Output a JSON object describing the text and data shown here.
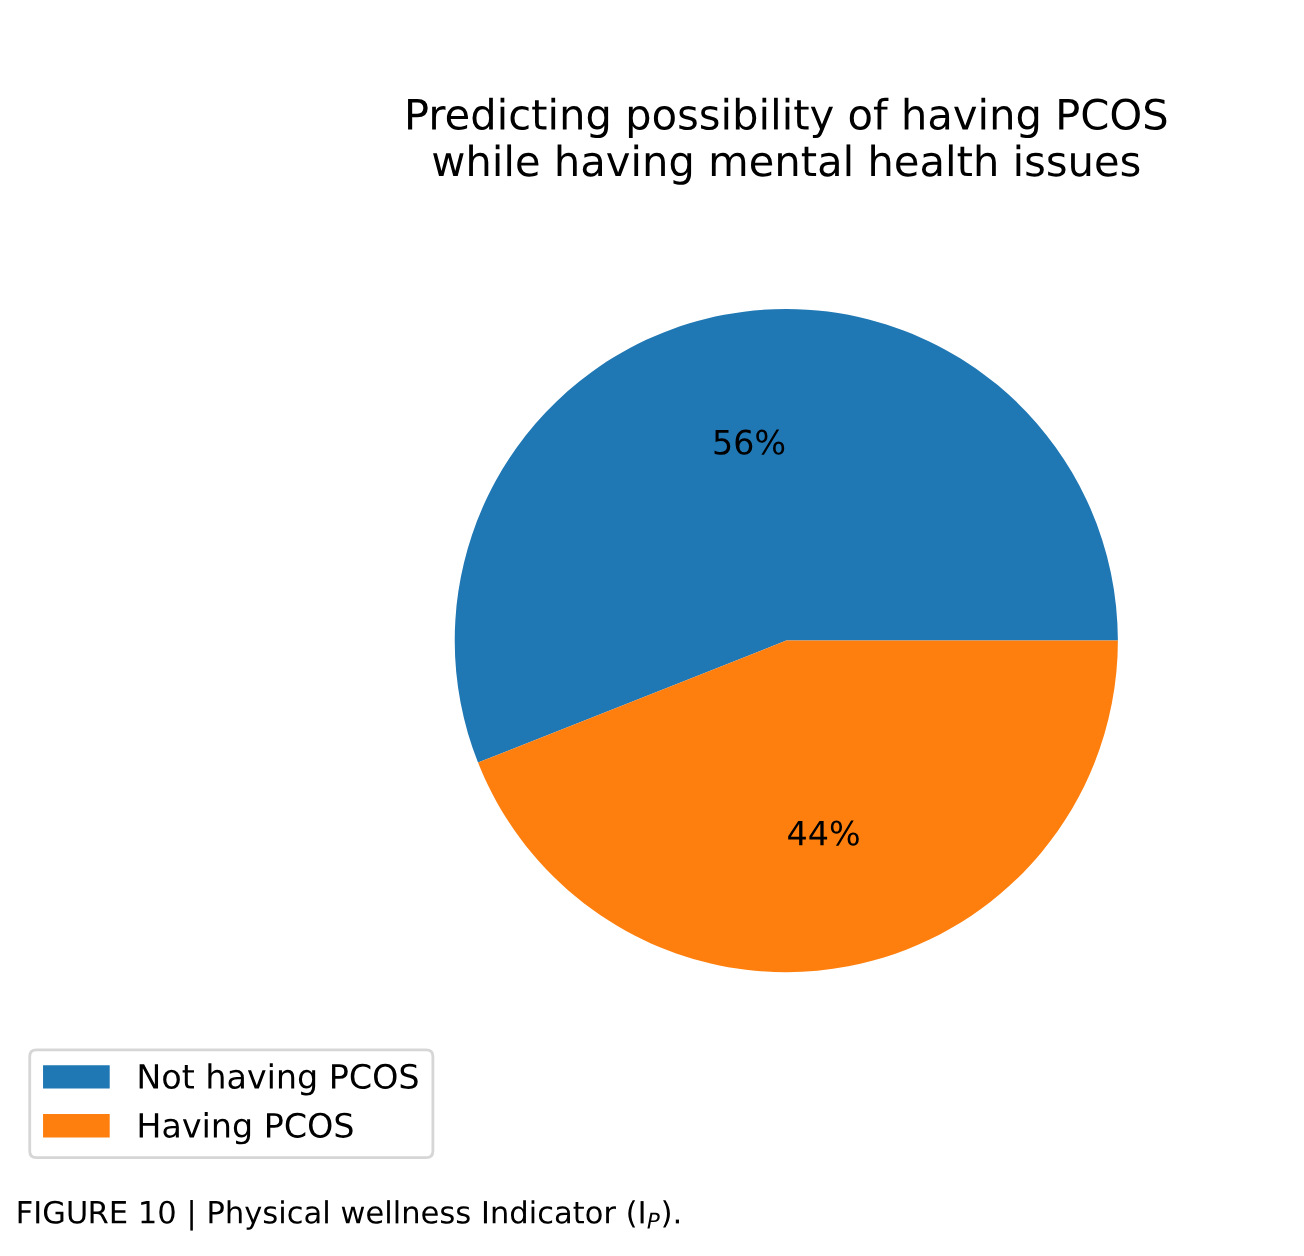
{
  "chart_data": {
    "type": "pie",
    "title": "Predicting possibility of having PCOS\nwhile having mental health issues",
    "categories": [
      "Not having PCOS",
      "Having PCOS"
    ],
    "values": [
      56,
      44
    ],
    "colors": [
      "#1f77b4",
      "#ff7f0e"
    ],
    "value_labels": [
      "56%",
      "44%"
    ],
    "legend": "bottom left",
    "annotations": [
      "FIGURE 10 | Physical wellness Indicator (I$_{P}$)."
    ]
  }
}
